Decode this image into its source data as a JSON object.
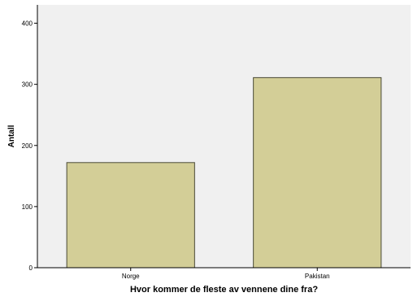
{
  "chart_data": {
    "type": "bar",
    "categories": [
      "Norge",
      "Pakistan"
    ],
    "values": [
      172,
      311
    ],
    "title": "",
    "xlabel": "Hvor kommer de fleste av vennene dine fra?",
    "ylabel": "Antall",
    "ylim": [
      0,
      430
    ],
    "yticks": [
      "0",
      "100",
      "200",
      "300",
      "400"
    ],
    "grid": false,
    "legend": "none"
  },
  "colors": {
    "plot_background": "#f0f0f0",
    "bar_fill": "#d3ce97",
    "bar_stroke": "#4a4a36",
    "axis": "#000000"
  }
}
